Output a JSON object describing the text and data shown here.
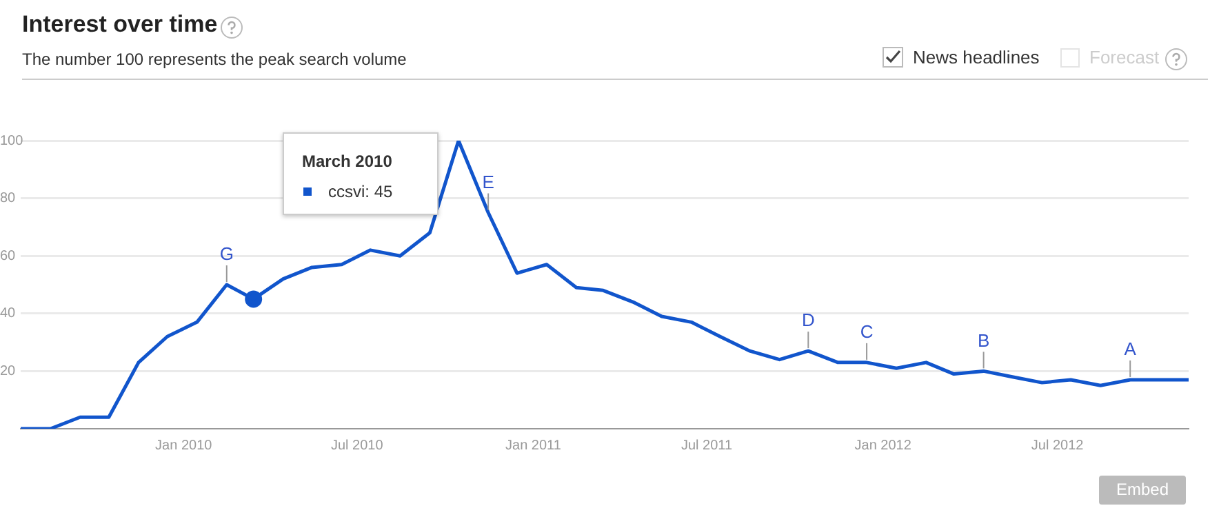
{
  "chart_data": {
    "type": "line",
    "title": "Interest over time",
    "subtitle": "The number 100 represents the peak search volume",
    "x": [
      "2009-07-15",
      "2009-08-15",
      "2009-09-15",
      "2009-10-15",
      "2009-11-15",
      "2009-12-15",
      "2010-01-15",
      "2010-02-15",
      "2010-03-15",
      "2010-04-15",
      "2010-05-15",
      "2010-06-15",
      "2010-07-15",
      "2010-08-15",
      "2010-09-15",
      "2010-10-15",
      "2010-11-15",
      "2010-12-15",
      "2011-01-15",
      "2011-02-15",
      "2011-03-15",
      "2011-04-15",
      "2011-05-15",
      "2011-06-15",
      "2011-07-15",
      "2011-08-15",
      "2011-09-15",
      "2011-10-15",
      "2011-11-15",
      "2011-12-15",
      "2012-01-15",
      "2012-02-15",
      "2012-03-15",
      "2012-04-15",
      "2012-05-15",
      "2012-06-15",
      "2012-07-15",
      "2012-08-15",
      "2012-09-15",
      "2012-10-15",
      "2012-11-15"
    ],
    "series": [
      {
        "color": "#1155cc",
        "values": [
          0,
          0,
          4,
          4,
          23,
          32,
          37,
          50,
          45,
          52,
          56,
          57,
          62,
          60,
          68,
          100,
          75,
          54,
          57,
          49,
          48,
          44,
          39,
          37,
          32,
          27,
          24,
          27,
          23,
          23,
          21,
          23,
          19,
          20,
          18,
          16,
          17,
          15,
          17,
          17,
          17
        ]
      },
      {
        "type": "scatter",
        "marker": "circle",
        "color": "#1155cc",
        "x": [
          "2010-03-15"
        ],
        "values": [
          45
        ]
      }
    ],
    "xlim": [
      "2009-07-15",
      "2012-11-15"
    ],
    "xticks": [
      {
        "value": "2010-01-01",
        "label": "Jan 2010"
      },
      {
        "value": "2010-07-01",
        "label": "Jul 2010"
      },
      {
        "value": "2011-01-01",
        "label": "Jan 2011"
      },
      {
        "value": "2011-07-01",
        "label": "Jul 2011"
      },
      {
        "value": "2012-01-01",
        "label": "Jan 2012"
      },
      {
        "value": "2012-07-01",
        "label": "Jul 2012"
      }
    ],
    "ylim": [
      0,
      100
    ],
    "yticks": [
      20,
      40,
      60,
      80,
      100
    ],
    "grid": "y",
    "legend": false,
    "marker": "none",
    "line_style": "solid",
    "annotations": [
      "News headlines",
      "Forecast",
      "Embed",
      "March 2010",
      "ccsvi: 45",
      {
        "text": "G",
        "x": "2010-02-15",
        "y": 50
      },
      {
        "text": "E",
        "x": "2010-11-15",
        "y": 75
      },
      {
        "text": "D",
        "x": "2011-10-15",
        "y": 27
      },
      {
        "text": "C",
        "x": "2011-12-15",
        "y": 23
      },
      {
        "text": "B",
        "x": "2012-04-15",
        "y": 20
      },
      {
        "text": "A",
        "x": "2012-09-15",
        "y": 17
      }
    ]
  }
}
